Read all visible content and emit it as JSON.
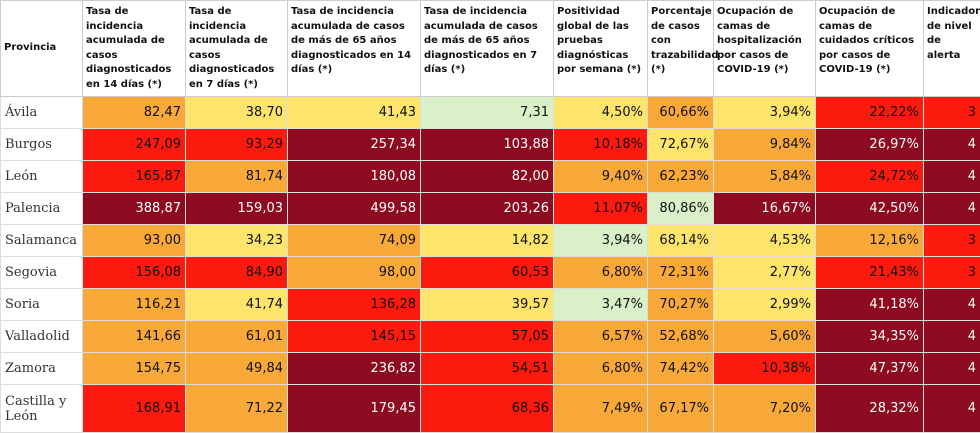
{
  "table": {
    "header": [
      "Provincia",
      "Tasa de incidencia acumulada de casos diagnosticados en 14 días (*)",
      "Tasa de incidencia acumulada de casos diagnosticados en 7 días (*)",
      "Tasa de incidencia acumulada de casos de más de 65 años diagnosticados en 14 días (*)",
      "Tasa de incidencia acumulada de casos de más de 65 años diagnosticados en 7 días (*)",
      "Positividad global de las pruebas diagnósticas por semana (*)",
      "Porcentaje de casos con trazabilidad (*)",
      "Ocupación de camas de hospitalización por casos de COVID-19 (*)",
      "Ocupación de camas de cuidados críticos por casos de COVID-19 (*)",
      "Indicador de nivel de alerta"
    ],
    "rows": [
      {
        "province": "Ávila",
        "cells": [
          "82,47",
          "38,70",
          "41,43",
          "7,31",
          "4,50%",
          "60,66%",
          "3,94%",
          "22,22%",
          "3"
        ],
        "colors": [
          "#f9a83a",
          "#fde46c",
          "#fde46c",
          "#daf0c9",
          "#fde46c",
          "#f9a83a",
          "#fde46c",
          "#fb1a0e",
          "#fb1a0e"
        ]
      },
      {
        "province": "Burgos",
        "cells": [
          "247,09",
          "93,29",
          "257,34",
          "103,88",
          "10,18%",
          "72,67%",
          "9,84%",
          "26,97%",
          "4"
        ],
        "colors": [
          "#fb1a0e",
          "#fb1a0e",
          "#8c0b20",
          "#8c0b20",
          "#fb1a0e",
          "#fde46c",
          "#f9a83a",
          "#8c0b20",
          "#8c0b20"
        ]
      },
      {
        "province": "León",
        "cells": [
          "165,87",
          "81,74",
          "180,08",
          "82,00",
          "9,40%",
          "62,23%",
          "5,84%",
          "24,72%",
          "4"
        ],
        "colors": [
          "#fb1a0e",
          "#f9a83a",
          "#8c0b20",
          "#8c0b20",
          "#f9a83a",
          "#f9a83a",
          "#f9a83a",
          "#fb1a0e",
          "#8c0b20"
        ]
      },
      {
        "province": "Palencia",
        "cells": [
          "388,87",
          "159,03",
          "499,58",
          "203,26",
          "11,07%",
          "80,86%",
          "16,67%",
          "42,50%",
          "4"
        ],
        "colors": [
          "#8c0b20",
          "#8c0b20",
          "#8c0b20",
          "#8c0b20",
          "#fb1a0e",
          "#daf0c9",
          "#8c0b20",
          "#8c0b20",
          "#8c0b20"
        ]
      },
      {
        "province": "Salamanca",
        "cells": [
          "93,00",
          "34,23",
          "74,09",
          "14,82",
          "3,94%",
          "68,14%",
          "4,53%",
          "12,16%",
          "3"
        ],
        "colors": [
          "#f9a83a",
          "#fde46c",
          "#f9a83a",
          "#fde46c",
          "#daf0c9",
          "#fde46c",
          "#fde46c",
          "#f9a83a",
          "#fb1a0e"
        ]
      },
      {
        "province": "Segovia",
        "cells": [
          "156,08",
          "84,90",
          "98,00",
          "60,53",
          "6,80%",
          "72,31%",
          "2,77%",
          "21,43%",
          "3"
        ],
        "colors": [
          "#fb1a0e",
          "#fb1a0e",
          "#f9a83a",
          "#fb1a0e",
          "#f9a83a",
          "#f9a83a",
          "#fde46c",
          "#fb1a0e",
          "#fb1a0e"
        ]
      },
      {
        "province": "Soria",
        "cells": [
          "116,21",
          "41,74",
          "136,28",
          "39,57",
          "3,47%",
          "70,27%",
          "2,99%",
          "41,18%",
          "4"
        ],
        "colors": [
          "#f9a83a",
          "#fde46c",
          "#fb1a0e",
          "#fde46c",
          "#daf0c9",
          "#f9a83a",
          "#fde46c",
          "#8c0b20",
          "#8c0b20"
        ]
      },
      {
        "province": "Valladolid",
        "cells": [
          "141,66",
          "61,01",
          "145,15",
          "57,05",
          "6,57%",
          "52,68%",
          "5,60%",
          "34,35%",
          "4"
        ],
        "colors": [
          "#f9a83a",
          "#f9a83a",
          "#fb1a0e",
          "#fb1a0e",
          "#f9a83a",
          "#f9a83a",
          "#f9a83a",
          "#8c0b20",
          "#8c0b20"
        ]
      },
      {
        "province": "Zamora",
        "cells": [
          "154,75",
          "49,84",
          "236,82",
          "54,51",
          "6,80%",
          "74,42%",
          "10,38%",
          "47,37%",
          "4"
        ],
        "colors": [
          "#f9a83a",
          "#f9a83a",
          "#8c0b20",
          "#fb1a0e",
          "#f9a83a",
          "#f9a83a",
          "#fb1a0e",
          "#8c0b20",
          "#8c0b20"
        ]
      },
      {
        "province": "Castilla y León",
        "cells": [
          "168,91",
          "71,22",
          "179,45",
          "68,36",
          "7,49%",
          "67,17%",
          "7,20%",
          "28,32%",
          "4"
        ],
        "colors": [
          "#fb1a0e",
          "#f9a83a",
          "#8c0b20",
          "#fb1a0e",
          "#f9a83a",
          "#f9a83a",
          "#f9a83a",
          "#8c0b20",
          "#8c0b20"
        ]
      }
    ]
  }
}
